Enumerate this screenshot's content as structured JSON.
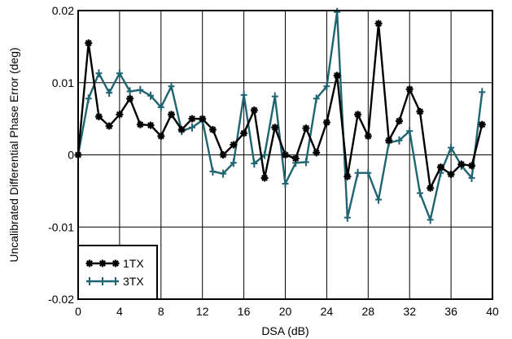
{
  "chart_data": {
    "type": "line",
    "title": "",
    "xlabel": "DSA (dB)",
    "ylabel": "Uncalibrated Differential Phase Error (deg)",
    "xlim": [
      0,
      40
    ],
    "ylim": [
      -0.02,
      0.02
    ],
    "xticks": [
      0,
      4,
      8,
      12,
      16,
      20,
      24,
      28,
      32,
      36,
      40
    ],
    "yticks": [
      -0.02,
      -0.01,
      0,
      0.01,
      0.02
    ],
    "xtick_labels": [
      "0",
      "4",
      "8",
      "12",
      "16",
      "20",
      "24",
      "28",
      "32",
      "36",
      "40"
    ],
    "ytick_labels": [
      "-0.02",
      "-0.01",
      "0",
      "0.01",
      "0.02"
    ],
    "grid": true,
    "legend_position": "bottom-left",
    "x": [
      0,
      1,
      2,
      3,
      4,
      5,
      6,
      7,
      8,
      9,
      10,
      11,
      12,
      13,
      14,
      15,
      16,
      17,
      18,
      19,
      20,
      21,
      22,
      23,
      24,
      25,
      26,
      27,
      28,
      29,
      30,
      31,
      32,
      33,
      34,
      35,
      36,
      37,
      38,
      39
    ],
    "series": [
      {
        "name": "1TX",
        "color": "#000000",
        "marker": "star",
        "values": [
          0.0,
          0.0155,
          0.0053,
          0.004,
          0.0056,
          0.0078,
          0.0042,
          0.0041,
          0.0026,
          0.0056,
          0.0035,
          0.005,
          0.005,
          0.0035,
          0.0,
          0.0014,
          0.003,
          0.0062,
          -0.0032,
          0.0038,
          0.0,
          -0.0005,
          0.0037,
          0.0003,
          0.0045,
          0.011,
          -0.003,
          0.0056,
          0.0026,
          0.0182,
          0.002,
          0.0047,
          0.0091,
          0.006,
          -0.0046,
          -0.0017,
          -0.0027,
          -0.0013,
          -0.0015,
          0.0042
        ]
      },
      {
        "name": "3TX",
        "color": "#1e6471",
        "marker": "plus",
        "values": [
          0.0,
          0.0078,
          0.0113,
          0.0086,
          0.0113,
          0.0088,
          0.009,
          0.0082,
          0.0066,
          0.0095,
          0.0033,
          0.0038,
          0.0048,
          -0.0023,
          -0.0026,
          -0.0011,
          0.0083,
          -0.0012,
          0.0,
          0.0081,
          -0.004,
          -0.0011,
          -0.001,
          0.0078,
          0.0095,
          0.0198,
          -0.0087,
          -0.0025,
          -0.0025,
          -0.0062,
          0.0017,
          0.002,
          0.0033,
          -0.0053,
          -0.009,
          -0.0025,
          0.001,
          -0.0015,
          -0.0032,
          0.0087
        ]
      }
    ]
  }
}
